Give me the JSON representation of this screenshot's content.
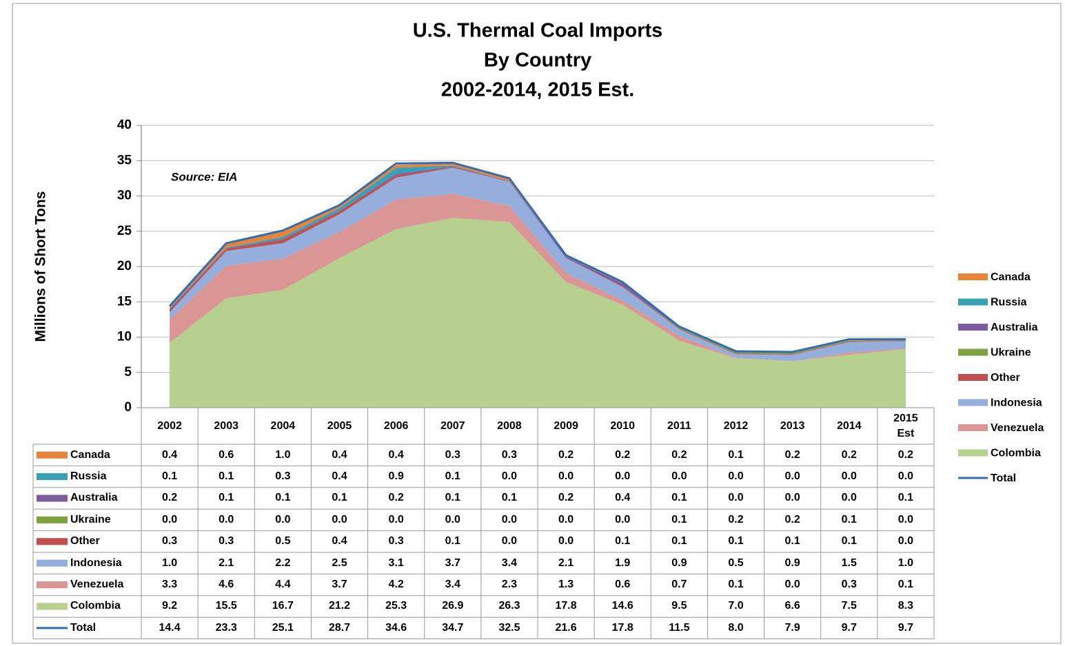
{
  "chart_data": {
    "type": "stacked_area",
    "title": [
      "U.S. Thermal Coal Imports",
      "By Country",
      "2002-2014, 2015 Est."
    ],
    "annotation": "Source: EIA",
    "y_label": "Millions of Short Tons",
    "categories": [
      "2002",
      "2003",
      "2004",
      "2005",
      "2006",
      "2007",
      "2008",
      "2009",
      "2010",
      "2011",
      "2012",
      "2013",
      "2014",
      "2015 Est"
    ],
    "ylim": [
      0,
      40
    ],
    "yticks": [
      0,
      5,
      10,
      15,
      20,
      25,
      30,
      35,
      40
    ],
    "grid": true,
    "legend": "right",
    "series": [
      {
        "name": "Canada",
        "color": "#e8833a",
        "values": [
          0.4,
          0.6,
          1.0,
          0.4,
          0.4,
          0.3,
          0.3,
          0.2,
          0.2,
          0.2,
          0.1,
          0.2,
          0.2,
          0.2
        ],
        "value_labels": [
          "0.4",
          "0.6",
          "1.0",
          "0.4",
          "0.4",
          "0.3",
          "0.3",
          "0.2",
          "0.2",
          "0.2",
          "0.1",
          "0.2",
          "0.2",
          "0.2"
        ]
      },
      {
        "name": "Russia",
        "color": "#3aa1b4",
        "values": [
          0.1,
          0.1,
          0.3,
          0.4,
          0.9,
          0.1,
          0.0,
          0.0,
          0.0,
          0.0,
          0.0,
          0.0,
          0.0,
          0.0
        ],
        "value_labels": [
          "0.1",
          "0.1",
          "0.3",
          "0.4",
          "0.9",
          "0.1",
          "0.0",
          "0.0",
          "0.0",
          "0.0",
          "0.0",
          "0.0",
          "0.0",
          "0.0"
        ]
      },
      {
        "name": "Australia",
        "color": "#7b5c9e",
        "values": [
          0.2,
          0.1,
          0.1,
          0.1,
          0.2,
          0.1,
          0.1,
          0.2,
          0.4,
          0.1,
          0.0,
          0.0,
          0.0,
          0.1
        ],
        "value_labels": [
          "0.2",
          "0.1",
          "0.1",
          "0.1",
          "0.2",
          "0.1",
          "0.1",
          "0.2",
          "0.4",
          "0.1",
          "0.0",
          "0.0",
          "0.0",
          "0.1"
        ]
      },
      {
        "name": "Ukraine",
        "color": "#7ea23f",
        "values": [
          0.0,
          0.0,
          0.0,
          0.0,
          0.0,
          0.0,
          0.0,
          0.0,
          0.0,
          0.1,
          0.2,
          0.2,
          0.1,
          0.0
        ],
        "value_labels": [
          "0.0",
          "0.0",
          "0.0",
          "0.0",
          "0.0",
          "0.0",
          "0.0",
          "0.0",
          "0.0",
          "0.1",
          "0.2",
          "0.2",
          "0.1",
          "0.0"
        ]
      },
      {
        "name": "Other",
        "color": "#c0504d",
        "values": [
          0.3,
          0.3,
          0.5,
          0.4,
          0.3,
          0.1,
          0.0,
          0.0,
          0.1,
          0.1,
          0.1,
          0.1,
          0.1,
          0.0
        ],
        "value_labels": [
          "0.3",
          "0.3",
          "0.5",
          "0.4",
          "0.3",
          "0.1",
          "0.0",
          "0.0",
          "0.1",
          "0.1",
          "0.1",
          "0.1",
          "0.1",
          "0.0"
        ]
      },
      {
        "name": "Indonesia",
        "color": "#96aedb",
        "values": [
          1.0,
          2.1,
          2.2,
          2.5,
          3.1,
          3.7,
          3.4,
          2.1,
          1.9,
          0.9,
          0.5,
          0.9,
          1.5,
          1.0
        ],
        "value_labels": [
          "1.0",
          "2.1",
          "2.2",
          "2.5",
          "3.1",
          "3.7",
          "3.4",
          "2.1",
          "1.9",
          "0.9",
          "0.5",
          "0.9",
          "1.5",
          "1.0"
        ]
      },
      {
        "name": "Venezuela",
        "color": "#d99694",
        "values": [
          3.3,
          4.6,
          4.4,
          3.7,
          4.2,
          3.4,
          2.3,
          1.3,
          0.6,
          0.7,
          0.1,
          0.0,
          0.3,
          0.1
        ],
        "value_labels": [
          "3.3",
          "4.6",
          "4.4",
          "3.7",
          "4.2",
          "3.4",
          "2.3",
          "1.3",
          "0.6",
          "0.7",
          "0.1",
          "0.0",
          "0.3",
          "0.1"
        ]
      },
      {
        "name": "Colombia",
        "color": "#b7d08f",
        "values": [
          9.2,
          15.5,
          16.7,
          21.2,
          25.3,
          26.9,
          26.3,
          17.8,
          14.6,
          9.5,
          7.0,
          6.6,
          7.5,
          8.3
        ],
        "value_labels": [
          "9.2",
          "15.5",
          "16.7",
          "21.2",
          "25.3",
          "26.9",
          "26.3",
          "17.8",
          "14.6",
          "9.5",
          "7.0",
          "6.6",
          "7.5",
          "8.3"
        ]
      },
      {
        "name": "Total",
        "color": "#2f6db5",
        "kind": "line",
        "values": [
          14.4,
          23.3,
          25.1,
          28.7,
          34.6,
          34.7,
          32.5,
          21.6,
          17.8,
          11.5,
          8.0,
          7.9,
          9.7,
          9.7
        ],
        "value_labels": [
          "14.4",
          "23.3",
          "25.1",
          "28.7",
          "34.6",
          "34.7",
          "32.5",
          "21.6",
          "17.8",
          "11.5",
          "8.0",
          "7.9",
          "9.7",
          "9.7"
        ]
      }
    ]
  }
}
